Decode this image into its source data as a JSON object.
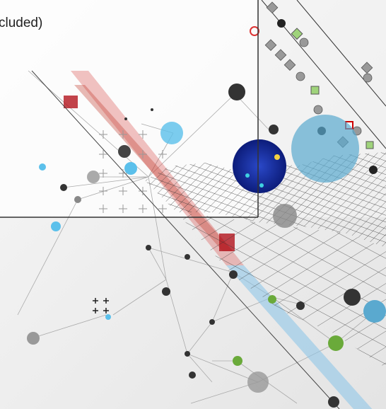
{
  "caption": "cluded)"
}
